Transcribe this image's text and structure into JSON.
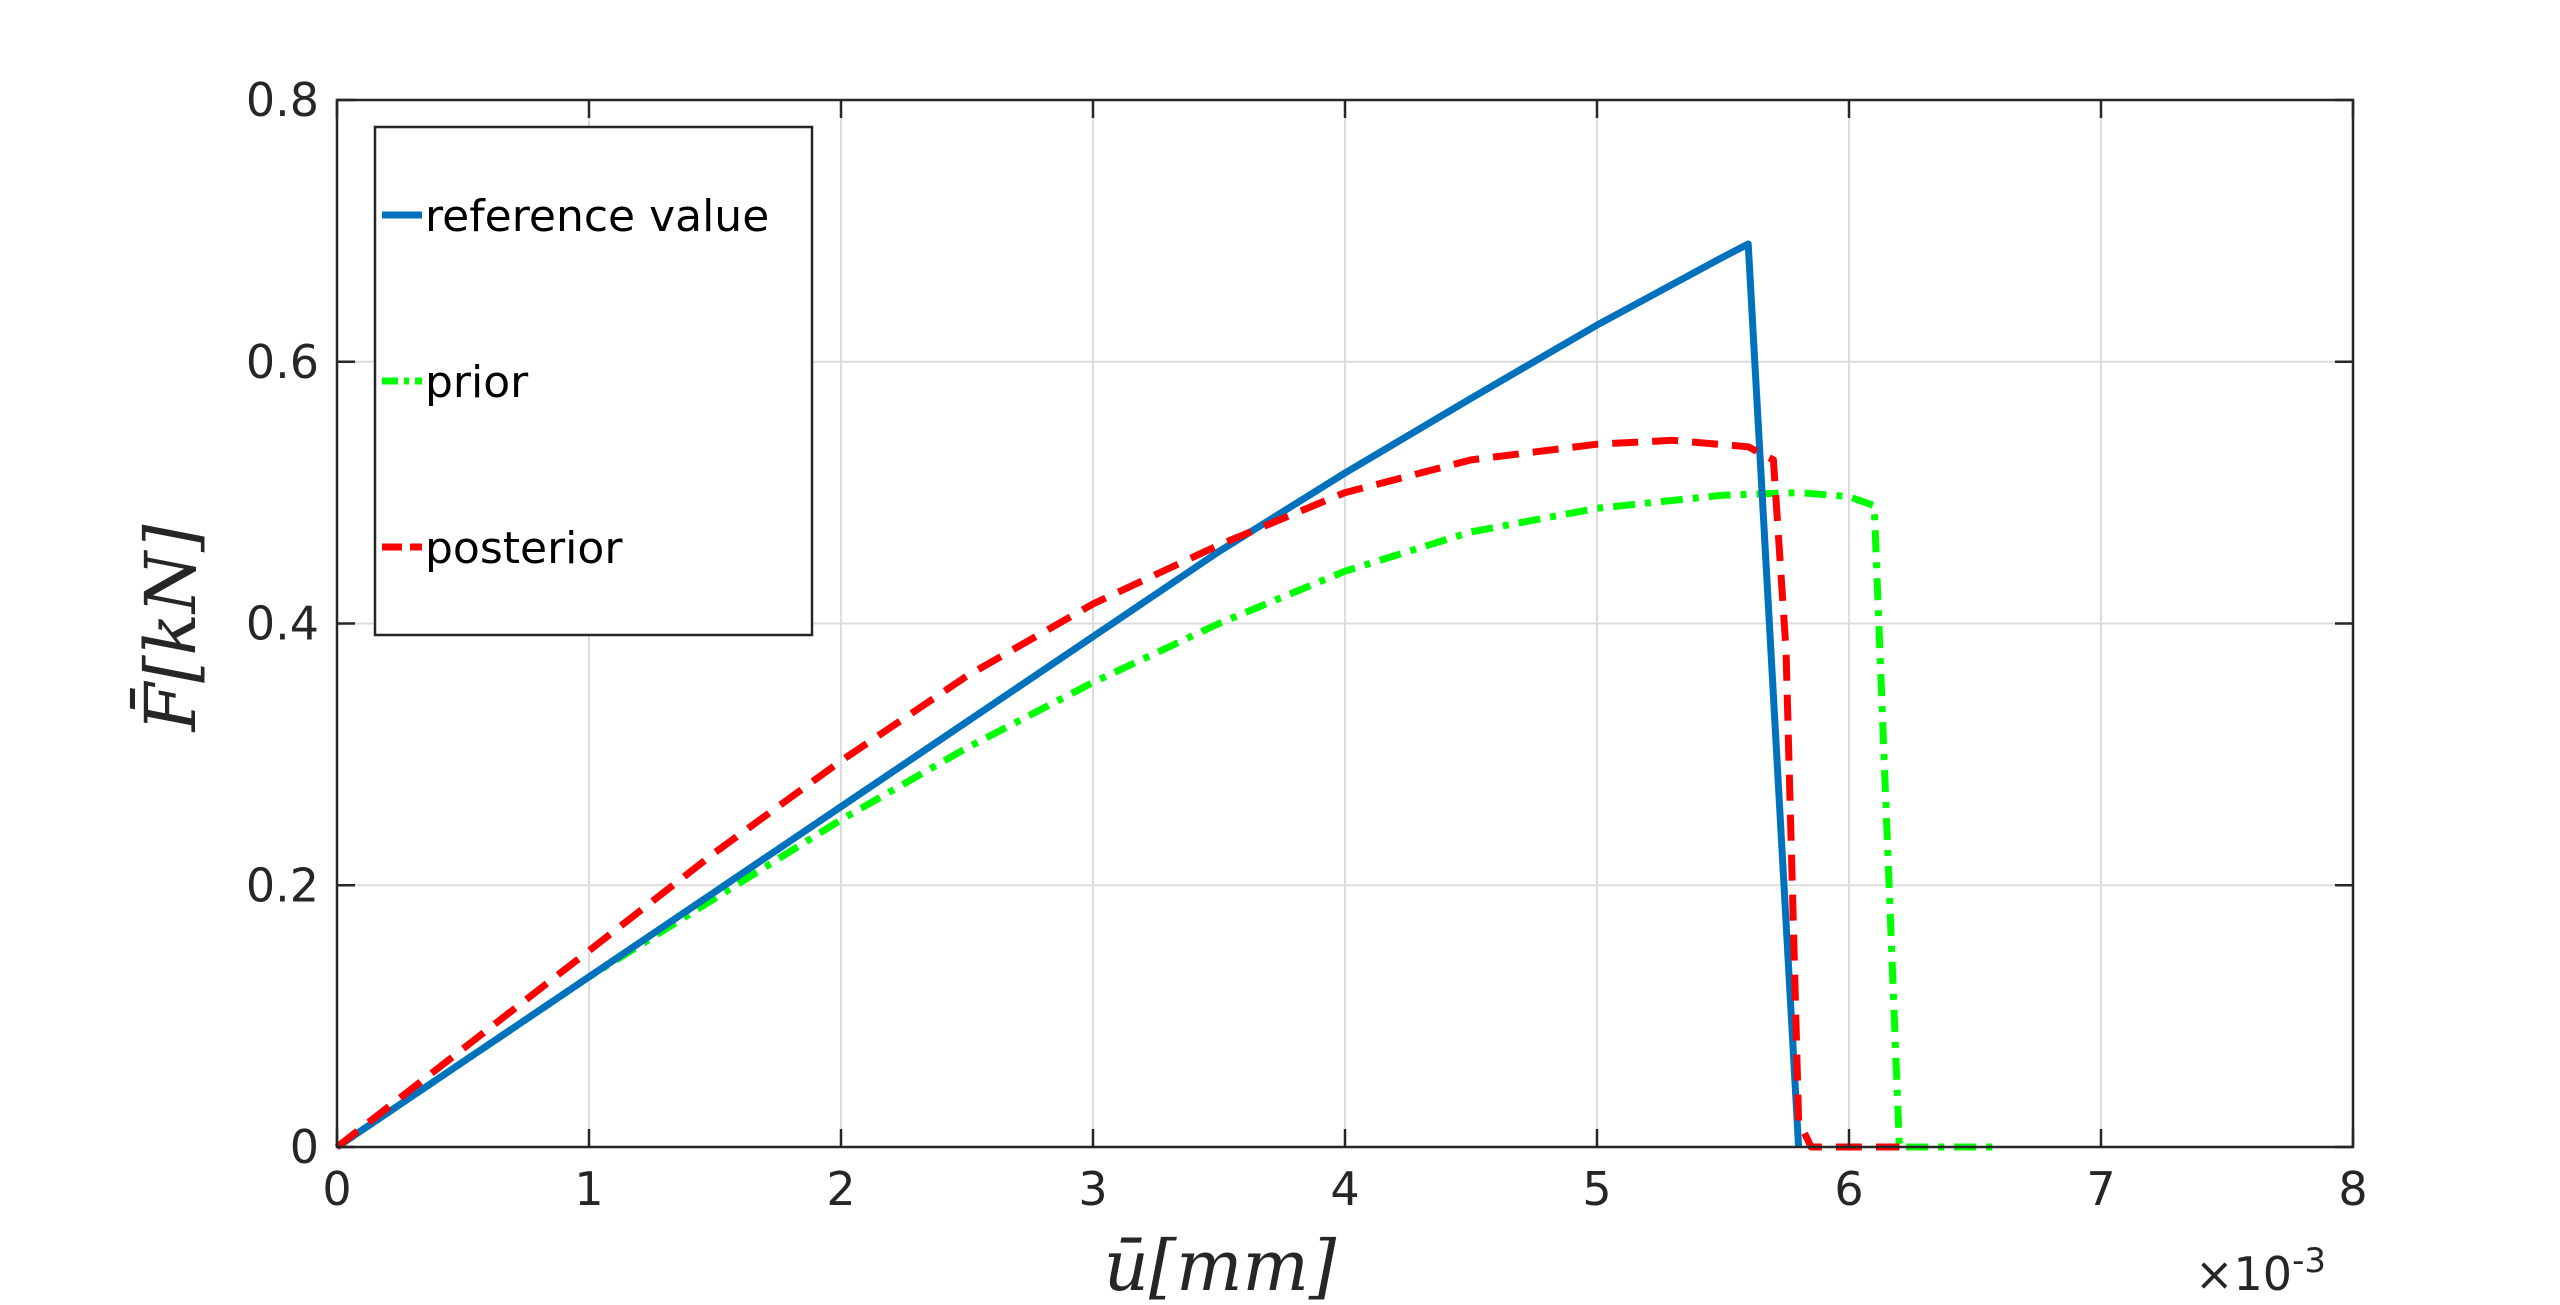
{
  "chart_data": {
    "type": "line",
    "xlabel": "ū[mm]",
    "ylabel": "F̄[kN]",
    "x_exponent_label": "×10",
    "x_exponent_power": "-3",
    "xlim": [
      0,
      8
    ],
    "ylim": [
      0,
      0.8
    ],
    "x_ticks": [
      0,
      1,
      2,
      3,
      4,
      5,
      6,
      7,
      8
    ],
    "y_ticks": [
      0,
      0.2,
      0.4,
      0.6,
      0.8
    ],
    "x_tick_labels": [
      "0",
      "1",
      "2",
      "3",
      "4",
      "5",
      "6",
      "7",
      "8"
    ],
    "y_tick_labels": [
      "0",
      "0.2",
      "0.4",
      "0.6",
      "0.8"
    ],
    "grid": true,
    "legend_position": "top-left",
    "series": [
      {
        "name": "reference value",
        "color": "#0072BD",
        "style": "solid",
        "x": [
          0,
          0.5,
          1.0,
          1.5,
          2.0,
          2.5,
          3.0,
          3.5,
          4.0,
          4.5,
          5.0,
          5.5,
          5.6,
          5.8
        ],
        "y": [
          0,
          0.065,
          0.13,
          0.195,
          0.26,
          0.325,
          0.39,
          0.455,
          0.515,
          0.572,
          0.628,
          0.68,
          0.69,
          0
        ]
      },
      {
        "name": "prior",
        "color": "#00FF00",
        "style": "dashdot",
        "x": [
          0,
          0.5,
          1.0,
          1.5,
          2.0,
          2.5,
          3.0,
          3.5,
          4.0,
          4.5,
          5.0,
          5.5,
          5.8,
          6.0,
          6.1,
          6.2,
          6.3,
          6.6
        ],
        "y": [
          0,
          0.065,
          0.13,
          0.19,
          0.25,
          0.305,
          0.355,
          0.4,
          0.44,
          0.47,
          0.488,
          0.498,
          0.5,
          0.497,
          0.49,
          0,
          0,
          0
        ]
      },
      {
        "name": "posterior",
        "color": "#FF0000",
        "style": "dashed",
        "x": [
          0,
          0.5,
          1.0,
          1.5,
          2.0,
          2.5,
          3.0,
          3.5,
          4.0,
          4.5,
          5.0,
          5.3,
          5.6,
          5.7,
          5.75,
          5.8,
          5.85,
          6.0,
          6.2
        ],
        "y": [
          0,
          0.075,
          0.15,
          0.225,
          0.295,
          0.36,
          0.415,
          0.46,
          0.5,
          0.525,
          0.537,
          0.54,
          0.535,
          0.525,
          0.38,
          0.02,
          0,
          0,
          0
        ]
      }
    ]
  }
}
